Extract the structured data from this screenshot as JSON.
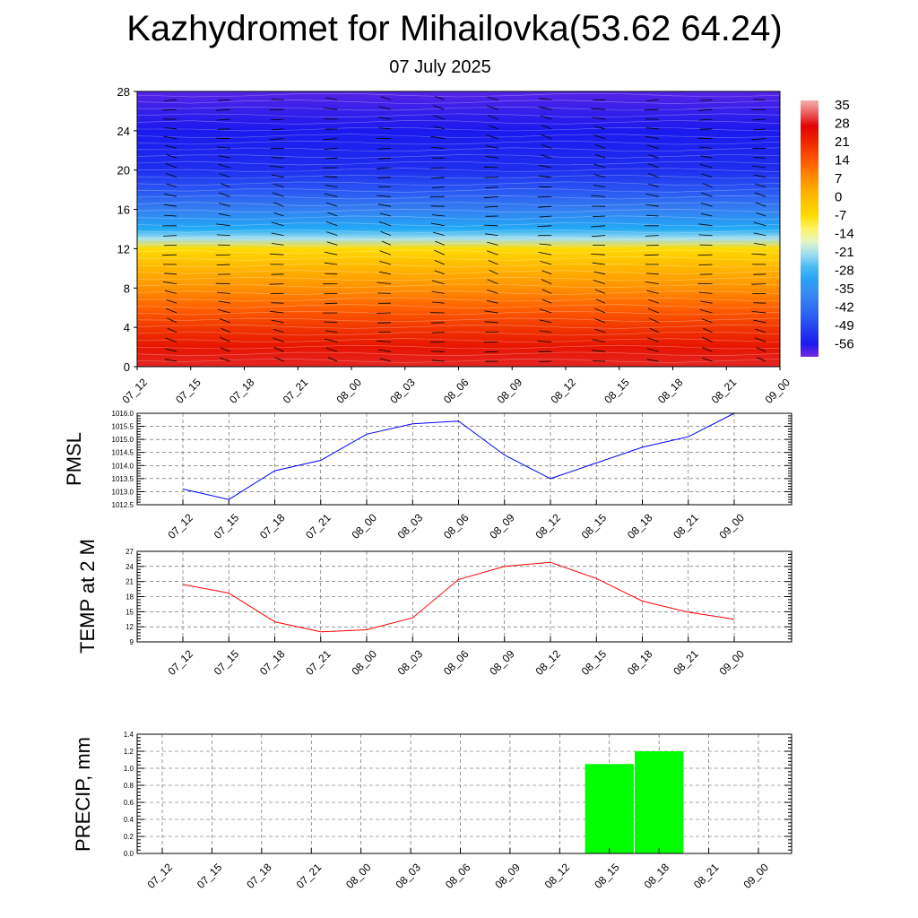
{
  "title": "Kazhydromet for Mihailovka(53.62 64.24)",
  "subtitle": "07 July 2025",
  "time_labels": [
    "07_12",
    "07_15",
    "07_18",
    "07_21",
    "08_00",
    "08_03",
    "08_06",
    "08_09",
    "08_12",
    "08_15",
    "08_18",
    "08_21",
    "09_00"
  ],
  "chart_data": [
    {
      "type": "heatmap",
      "title": "",
      "ylabel": "",
      "x": [
        "07_12",
        "07_15",
        "07_18",
        "07_21",
        "08_00",
        "08_03",
        "08_06",
        "08_09",
        "08_12",
        "08_15",
        "08_18",
        "08_21",
        "09_00"
      ],
      "y_ticks": [
        0,
        4,
        8,
        12,
        16,
        20,
        24,
        28
      ],
      "ylim": [
        0,
        28
      ],
      "colorbar_labels": [
        35,
        28,
        21,
        14,
        7,
        0,
        -7,
        -14,
        -21,
        -28,
        -35,
        -42,
        -49,
        -56
      ],
      "value_range": [
        -60,
        38
      ],
      "temperature_profile": [
        {
          "level": 0,
          "value": 30
        },
        {
          "level": 2,
          "value": 25
        },
        {
          "level": 4,
          "value": 20
        },
        {
          "level": 6,
          "value": 14
        },
        {
          "level": 8,
          "value": 8
        },
        {
          "level": 10,
          "value": 2
        },
        {
          "level": 12,
          "value": -6
        },
        {
          "level": 13,
          "value": -20
        },
        {
          "level": 14,
          "value": -28
        },
        {
          "level": 16,
          "value": -38
        },
        {
          "level": 18,
          "value": -46
        },
        {
          "level": 20,
          "value": -52
        },
        {
          "level": 24,
          "value": -55
        },
        {
          "level": 28,
          "value": -58
        }
      ],
      "overlay": "wind barbs",
      "colors": {
        "hot": "#e00000",
        "warm": "#ffc000",
        "cold": "#00aaff",
        "frozen": "#2020e0"
      }
    },
    {
      "type": "line",
      "ylabel": "PMSL",
      "x": [
        "07_12",
        "07_15",
        "07_18",
        "07_21",
        "08_00",
        "08_03",
        "08_06",
        "08_09",
        "08_12",
        "08_15",
        "08_18",
        "08_21",
        "09_00"
      ],
      "values": [
        1013.1,
        1012.7,
        1013.8,
        1014.2,
        1015.2,
        1015.6,
        1015.7,
        1014.4,
        1013.5,
        1014.1,
        1014.7,
        1015.1,
        1016.0
      ],
      "ylim": [
        1012.5,
        1016.0
      ],
      "y_ticks": [
        "1012.5",
        "1013.0",
        "1013.5",
        "1014.0",
        "1014.5",
        "1015.0",
        "1015.5",
        "1016.0"
      ],
      "grid": true,
      "color": "#0000ff"
    },
    {
      "type": "line",
      "ylabel": "TEMP at 2 M",
      "x": [
        "07_12",
        "07_15",
        "07_18",
        "07_21",
        "08_00",
        "08_03",
        "08_06",
        "08_09",
        "08_12",
        "08_15",
        "08_18",
        "08_21",
        "09_00"
      ],
      "values": [
        20.4,
        18.7,
        13.0,
        11.0,
        11.4,
        13.8,
        21.4,
        24.0,
        24.8,
        21.6,
        17.1,
        14.9,
        13.5
      ],
      "ylim": [
        9,
        27
      ],
      "y_ticks": [
        "9",
        "12",
        "15",
        "18",
        "21",
        "24",
        "27"
      ],
      "grid": true,
      "color": "#ff0000"
    },
    {
      "type": "bar",
      "ylabel": "PRECIP, mm",
      "categories": [
        "07_12",
        "07_15",
        "07_18",
        "07_21",
        "08_00",
        "08_03",
        "08_06",
        "08_09",
        "08_12",
        "08_15",
        "08_18",
        "08_21",
        "09_00"
      ],
      "values": [
        0,
        0,
        0,
        0,
        0,
        0,
        0,
        0,
        0,
        1.05,
        1.2,
        0,
        0
      ],
      "ylim": [
        0,
        1.4
      ],
      "y_ticks": [
        "0.0",
        "0.2",
        "0.4",
        "0.6",
        "0.8",
        "1.0",
        "1.2",
        "1.4"
      ],
      "grid": true,
      "color": "#00ff00"
    }
  ]
}
